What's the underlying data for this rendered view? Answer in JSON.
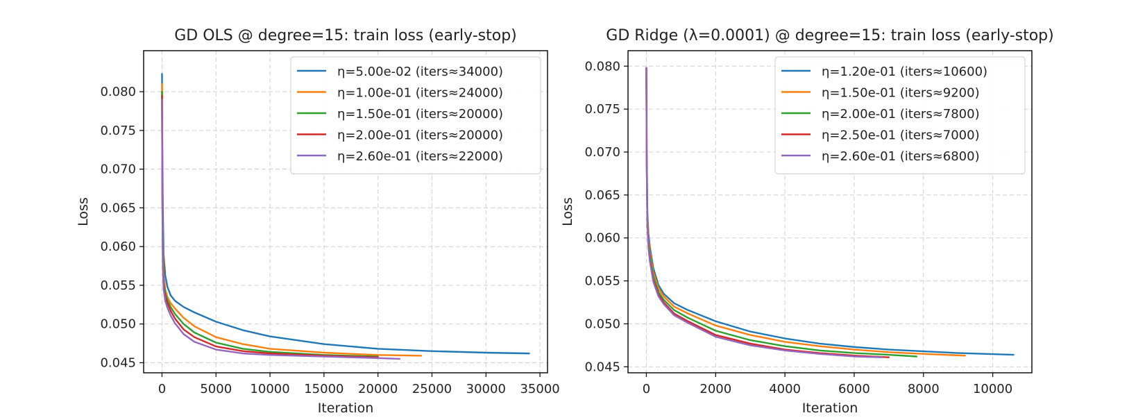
{
  "chart_data": [
    {
      "type": "line",
      "title": "GD OLS @ degree=15: train loss (early-stop)",
      "xlabel": "Iteration",
      "ylabel": "Loss",
      "xlim": [
        -1700,
        35700
      ],
      "ylim": [
        0.0437,
        0.0853
      ],
      "xticks": [
        0,
        5000,
        10000,
        15000,
        20000,
        25000,
        30000,
        35000
      ],
      "yticks": [
        0.045,
        0.05,
        0.055,
        0.06,
        0.065,
        0.07,
        0.075,
        0.08
      ],
      "ytick_labels": [
        "0.045",
        "0.050",
        "0.055",
        "0.060",
        "0.065",
        "0.070",
        "0.075",
        "0.080"
      ],
      "grid": true,
      "legend_position": "upper-right",
      "series": [
        {
          "name": "η=5.00e-02  (iters≈34000)",
          "color": "#1f77b4",
          "x": [
            0,
            30,
            80,
            150,
            300,
            500,
            800,
            1200,
            2000,
            3000,
            5000,
            7500,
            10000,
            15000,
            20000,
            25000,
            30000,
            34000
          ],
          "y": [
            0.0823,
            0.074,
            0.065,
            0.059,
            0.0563,
            0.0548,
            0.0537,
            0.053,
            0.0522,
            0.0515,
            0.0503,
            0.0492,
            0.0484,
            0.0474,
            0.0468,
            0.0465,
            0.0463,
            0.0462
          ]
        },
        {
          "name": "η=1.00e-01  (iters≈24000)",
          "color": "#ff7f0e",
          "x": [
            0,
            30,
            80,
            150,
            300,
            500,
            800,
            1200,
            2000,
            3000,
            5000,
            7500,
            10000,
            15000,
            20000,
            24000
          ],
          "y": [
            0.081,
            0.07,
            0.061,
            0.0565,
            0.0545,
            0.0535,
            0.0527,
            0.052,
            0.0508,
            0.0497,
            0.0483,
            0.0474,
            0.0468,
            0.0463,
            0.046,
            0.0459
          ]
        },
        {
          "name": "η=1.50e-01  (iters≈20000)",
          "color": "#2ca02c",
          "x": [
            0,
            30,
            80,
            150,
            300,
            500,
            800,
            1200,
            2000,
            3000,
            5000,
            7500,
            10000,
            15000,
            20000
          ],
          "y": [
            0.08,
            0.068,
            0.059,
            0.0555,
            0.054,
            0.0531,
            0.0522,
            0.0513,
            0.05,
            0.0489,
            0.0476,
            0.0468,
            0.0464,
            0.046,
            0.0458
          ]
        },
        {
          "name": "η=2.00e-01  (iters≈20000)",
          "color": "#d62728",
          "x": [
            0,
            30,
            80,
            150,
            300,
            500,
            800,
            1200,
            2000,
            3000,
            5000,
            7500,
            10000,
            15000,
            20000
          ],
          "y": [
            0.0795,
            0.067,
            0.058,
            0.055,
            0.0535,
            0.0527,
            0.0517,
            0.0507,
            0.0493,
            0.0483,
            0.0471,
            0.0465,
            0.0462,
            0.0459,
            0.0457
          ]
        },
        {
          "name": "η=2.60e-01  (iters≈22000)",
          "color": "#9467bd",
          "x": [
            0,
            30,
            80,
            150,
            300,
            500,
            800,
            1200,
            2000,
            3000,
            5000,
            7500,
            10000,
            15000,
            20000,
            22000
          ],
          "y": [
            0.079,
            0.066,
            0.0575,
            0.0545,
            0.053,
            0.0521,
            0.0511,
            0.0501,
            0.0487,
            0.0477,
            0.0467,
            0.0462,
            0.046,
            0.0458,
            0.0456,
            0.0455
          ]
        }
      ]
    },
    {
      "type": "line",
      "title": "GD Ridge (λ=0.0001) @ degree=15: train loss (early-stop)",
      "xlabel": "Iteration",
      "ylabel": "Loss",
      "xlim": [
        -530,
        11130
      ],
      "ylim": [
        0.0443,
        0.0818
      ],
      "xticks": [
        0,
        2000,
        4000,
        6000,
        8000,
        10000
      ],
      "yticks": [
        0.045,
        0.05,
        0.055,
        0.06,
        0.065,
        0.07,
        0.075,
        0.08
      ],
      "ytick_labels": [
        "0.045",
        "0.050",
        "0.055",
        "0.060",
        "0.065",
        "0.070",
        "0.075",
        "0.080"
      ],
      "grid": true,
      "legend_position": "upper-right",
      "series": [
        {
          "name": "η=1.20e-01  (iters≈10600)",
          "color": "#1f77b4",
          "x": [
            0,
            10,
            30,
            60,
            100,
            200,
            350,
            500,
            800,
            1200,
            2000,
            3000,
            4000,
            5000,
            6000,
            7000,
            8000,
            9000,
            10600
          ],
          "y": [
            0.0798,
            0.07,
            0.063,
            0.0605,
            0.059,
            0.0565,
            0.0545,
            0.0535,
            0.0524,
            0.0516,
            0.0503,
            0.0491,
            0.0483,
            0.0477,
            0.0473,
            0.047,
            0.0468,
            0.0466,
            0.0464
          ]
        },
        {
          "name": "η=1.50e-01  (iters≈9200)",
          "color": "#ff7f0e",
          "x": [
            0,
            10,
            30,
            60,
            100,
            200,
            350,
            500,
            800,
            1200,
            2000,
            3000,
            4000,
            5000,
            6000,
            7000,
            8000,
            9200
          ],
          "y": [
            0.0798,
            0.0695,
            0.0625,
            0.06,
            0.0585,
            0.056,
            0.0541,
            0.0532,
            0.052,
            0.0512,
            0.0498,
            0.0487,
            0.0479,
            0.0474,
            0.047,
            0.0467,
            0.0465,
            0.0463
          ]
        },
        {
          "name": "η=2.00e-01  (iters≈7800)",
          "color": "#2ca02c",
          "x": [
            0,
            10,
            30,
            60,
            100,
            200,
            350,
            500,
            800,
            1200,
            2000,
            3000,
            4000,
            5000,
            6000,
            7000,
            7800
          ],
          "y": [
            0.0798,
            0.069,
            0.062,
            0.0595,
            0.058,
            0.0555,
            0.0537,
            0.0528,
            0.0516,
            0.0507,
            0.0492,
            0.0481,
            0.0474,
            0.0469,
            0.0466,
            0.0464,
            0.0462
          ]
        },
        {
          "name": "η=2.50e-01  (iters≈7000)",
          "color": "#d62728",
          "x": [
            0,
            10,
            30,
            60,
            100,
            200,
            350,
            500,
            800,
            1200,
            2000,
            3000,
            4000,
            5000,
            6000,
            7000
          ],
          "y": [
            0.0798,
            0.0685,
            0.0615,
            0.059,
            0.0575,
            0.0551,
            0.0534,
            0.0525,
            0.0512,
            0.0503,
            0.0487,
            0.0477,
            0.047,
            0.0466,
            0.0463,
            0.0461
          ]
        },
        {
          "name": "η=2.60e-01  (iters≈6800)",
          "color": "#9467bd",
          "x": [
            0,
            10,
            30,
            60,
            100,
            200,
            350,
            500,
            800,
            1200,
            2000,
            3000,
            4000,
            5000,
            6000,
            6800
          ],
          "y": [
            0.0798,
            0.0683,
            0.0613,
            0.0588,
            0.0573,
            0.0549,
            0.0532,
            0.0523,
            0.051,
            0.0501,
            0.0485,
            0.0475,
            0.0469,
            0.0465,
            0.0462,
            0.0461
          ]
        }
      ]
    }
  ]
}
